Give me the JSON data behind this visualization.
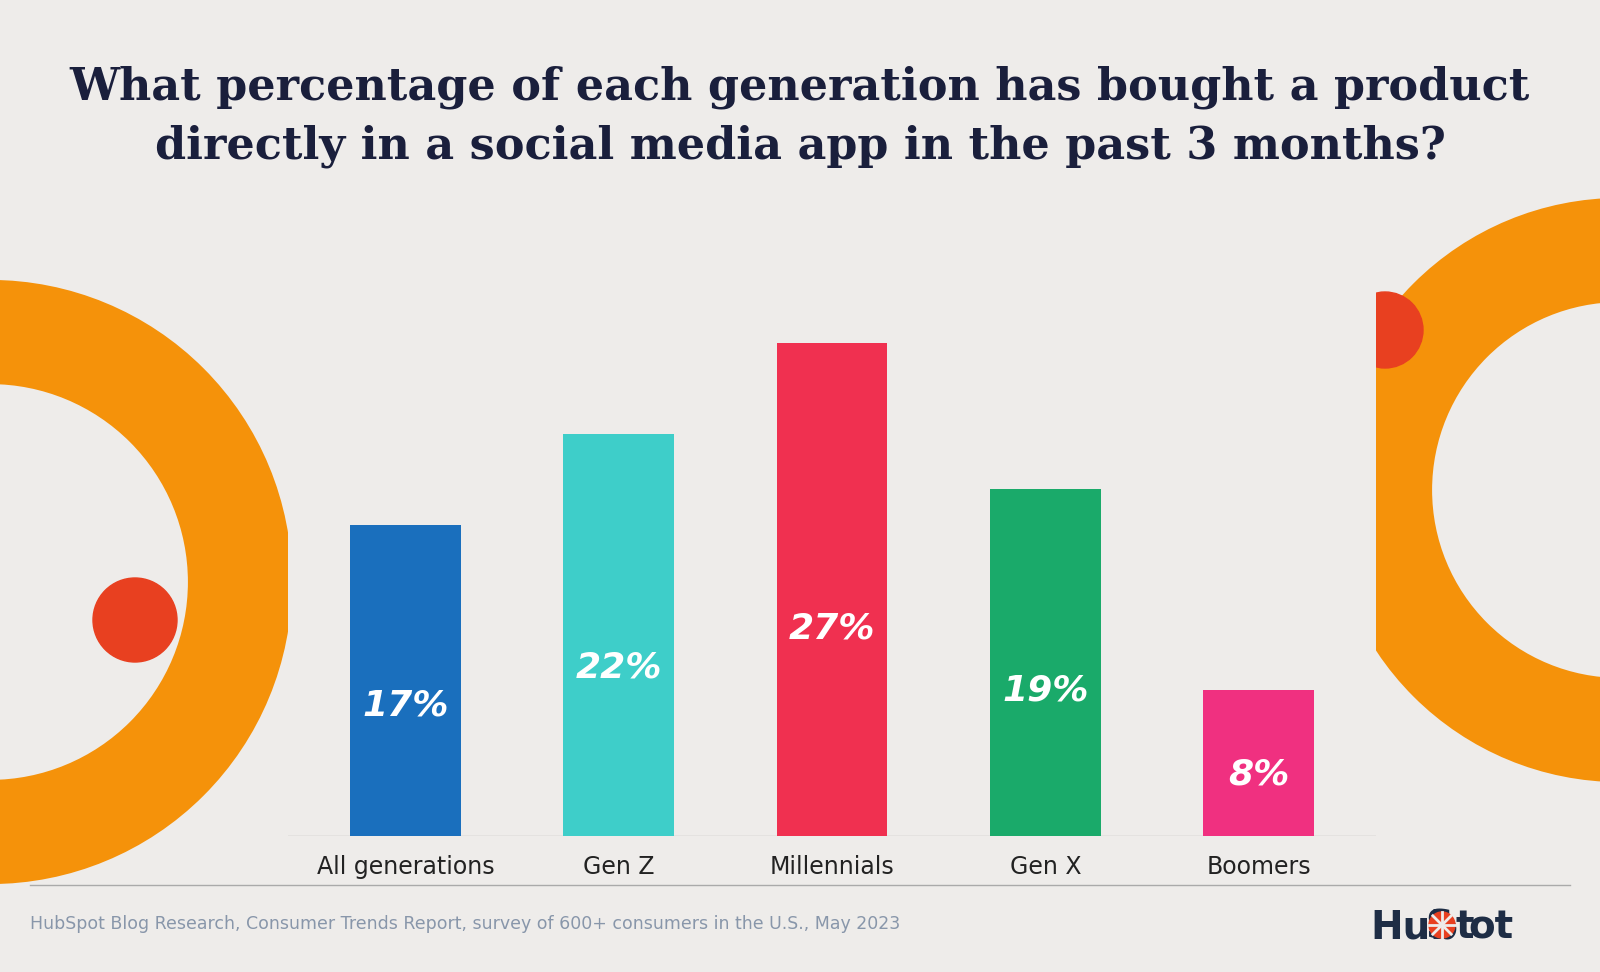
{
  "title": "What percentage of each generation has bought a product\ndirectly in a social media app in the past 3 months?",
  "categories": [
    "All generations",
    "Gen Z",
    "Millennials",
    "Gen X",
    "Boomers"
  ],
  "values": [
    17,
    22,
    27,
    19,
    8
  ],
  "bar_colors": [
    "#1a6fbd",
    "#3ecec9",
    "#f03050",
    "#1aaa6a",
    "#f03080"
  ],
  "label_texts": [
    "17%",
    "22%",
    "27%",
    "19%",
    "8%"
  ],
  "background_color": "#eeecea",
  "title_color": "#1a1f3c",
  "label_color": "#ffffff",
  "footer_text": "HubSpot Blog Research, Consumer Trends Report, survey of 600+ consumers in the U.S., May 2023",
  "footer_color": "#8896aa",
  "bar_width": 0.52,
  "ylim": [
    0,
    33
  ],
  "label_fontsize": 26,
  "title_fontsize": 32,
  "category_fontsize": 17,
  "deco_orange": "#f5920a",
  "deco_red": "#e84020",
  "hubspot_dark": "#1e2d45"
}
